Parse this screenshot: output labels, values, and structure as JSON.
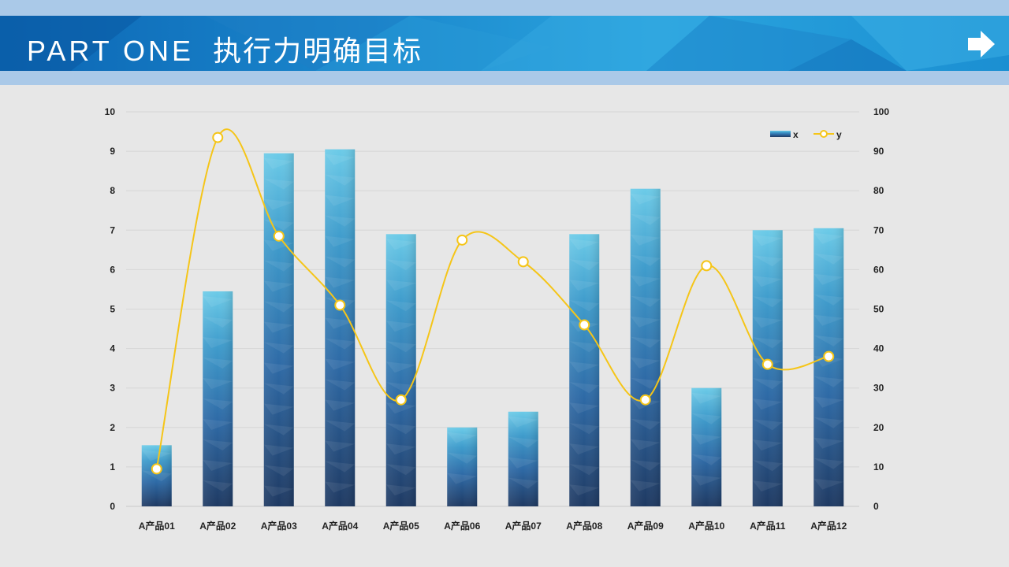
{
  "header": {
    "title_en": "PART ONE",
    "title_cn": "执行力明确目标"
  },
  "icons": {
    "next": "arrow-right-icon"
  },
  "colors": {
    "header_dark": "#0c66b4",
    "header_light": "#2aa4de",
    "strip": "#aac9e8",
    "bar_top": "#5cc4e4",
    "bar_bottom": "#24406a",
    "line": "#f5c518"
  },
  "chart_data": {
    "type": "bar",
    "categories": [
      "A产品01",
      "A产品02",
      "A产品03",
      "A产品04",
      "A产品05",
      "A产品06",
      "A产品07",
      "A产品08",
      "A产品09",
      "A产品10",
      "A产品11",
      "A产品12"
    ],
    "series": [
      {
        "name": "x",
        "type": "bar",
        "axis": "left",
        "values": [
          1.55,
          5.45,
          8.95,
          9.05,
          6.9,
          2.0,
          2.4,
          6.9,
          8.05,
          3.0,
          7.0,
          7.05
        ]
      },
      {
        "name": "y",
        "type": "line",
        "axis": "right",
        "smooth": true,
        "values": [
          9.5,
          93.5,
          68.5,
          51,
          27,
          67.5,
          62,
          46,
          27,
          61,
          36,
          38
        ]
      }
    ],
    "y_left": {
      "range": [
        0,
        10
      ],
      "ticks": [
        "0",
        "1",
        "2",
        "3",
        "4",
        "5",
        "6",
        "7",
        "8",
        "9",
        "10"
      ]
    },
    "y_right": {
      "range": [
        0,
        100
      ],
      "ticks": [
        "0",
        "10",
        "20",
        "30",
        "40",
        "50",
        "60",
        "70",
        "80",
        "90",
        "100"
      ]
    },
    "grid": true,
    "legend": "top-right"
  }
}
